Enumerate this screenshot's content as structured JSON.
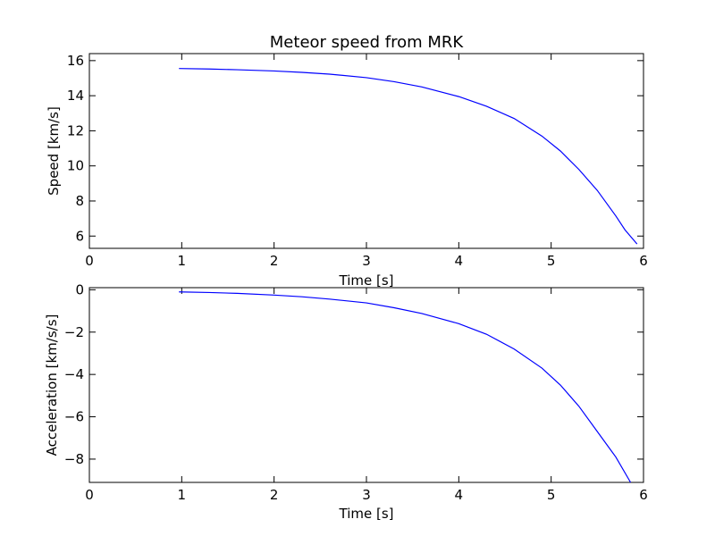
{
  "chart_data": [
    {
      "type": "line",
      "title": "Meteor speed from  MRK",
      "xlabel": "Time [s]",
      "ylabel": "Speed [km/s]",
      "xlim": [
        0,
        6
      ],
      "ylim": [
        5.3,
        16.4
      ],
      "xticks": [
        0,
        1,
        2,
        3,
        4,
        5,
        6
      ],
      "yticks": [
        6,
        8,
        10,
        12,
        14,
        16
      ],
      "xtick_labels": [
        "0",
        "1",
        "2",
        "3",
        "4",
        "5",
        "6"
      ],
      "ytick_labels": [
        "6",
        "8",
        "10",
        "12",
        "14",
        "16"
      ],
      "grid": false,
      "color": "#0000ff",
      "series": [
        {
          "x": [
            0.97,
            1.3,
            1.6,
            2.0,
            2.3,
            2.6,
            3.0,
            3.3,
            3.6,
            4.0,
            4.3,
            4.6,
            4.9,
            5.1,
            5.3,
            5.5,
            5.7,
            5.8,
            5.93
          ],
          "values": [
            15.55,
            15.52,
            15.48,
            15.41,
            15.33,
            15.23,
            15.03,
            14.8,
            14.5,
            13.95,
            13.4,
            12.7,
            11.7,
            10.85,
            9.8,
            8.6,
            7.15,
            6.35,
            5.55
          ]
        }
      ]
    },
    {
      "type": "line",
      "title": "",
      "xlabel": "Time [s]",
      "ylabel": "Acceleration [km/s/s]",
      "xlim": [
        0,
        6
      ],
      "ylim": [
        -9.1,
        0.1
      ],
      "xticks": [
        0,
        1,
        2,
        3,
        4,
        5,
        6
      ],
      "yticks": [
        0,
        -2,
        -4,
        -6,
        -8
      ],
      "xtick_labels": [
        "0",
        "1",
        "2",
        "3",
        "4",
        "5",
        "6"
      ],
      "ytick_labels": [
        "0",
        "−2",
        "−4",
        "−6",
        "−8"
      ],
      "grid": false,
      "color": "#0000ff",
      "series": [
        {
          "x": [
            0.97,
            1.3,
            1.6,
            2.0,
            2.3,
            2.6,
            3.0,
            3.3,
            3.6,
            4.0,
            4.3,
            4.6,
            4.9,
            5.1,
            5.3,
            5.5,
            5.7,
            5.86
          ],
          "values": [
            -0.1,
            -0.13,
            -0.17,
            -0.25,
            -0.33,
            -0.44,
            -0.62,
            -0.85,
            -1.12,
            -1.6,
            -2.1,
            -2.8,
            -3.7,
            -4.5,
            -5.5,
            -6.7,
            -7.9,
            -9.1
          ]
        }
      ]
    }
  ]
}
